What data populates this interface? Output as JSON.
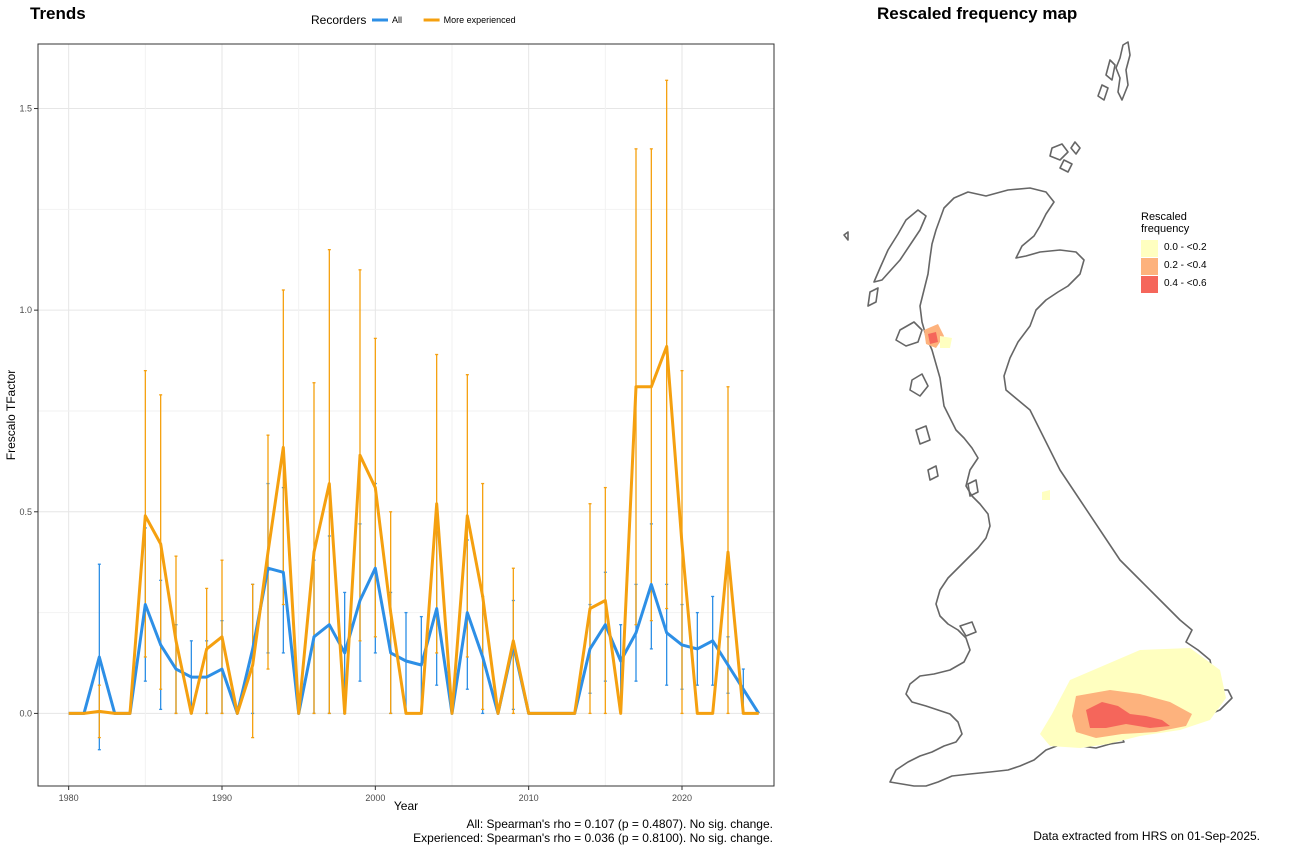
{
  "trends": {
    "title": "Trends",
    "legend_title": "Recorders",
    "notes": [
      "All: Spearman's rho = 0.107 (p = 0.4807). No sig. change.",
      "Experienced: Spearman's rho = 0.036 (p = 0.8100). No sig. change."
    ]
  },
  "map": {
    "title": "Rescaled frequency map",
    "legend_title_line1": "Rescaled",
    "legend_title_line2": "frequency",
    "legend": [
      {
        "label": "0.0 - <0.2",
        "color": "#FFFFC0"
      },
      {
        "label": "0.2 - <0.4",
        "color": "#FDB27D"
      },
      {
        "label": "0.4 - <0.6",
        "color": "#F5665B"
      }
    ],
    "footer": "Data extracted from HRS on 01-Sep-2025."
  },
  "chart_data": {
    "type": "line",
    "xlabel": "Year",
    "ylabel": "Frescalo TFactor",
    "xlim": [
      1978,
      2026
    ],
    "ylim": [
      -0.18,
      1.66
    ],
    "xticks": [
      1980,
      1990,
      2000,
      2010,
      2020
    ],
    "yticks": [
      0.0,
      0.5,
      1.0,
      1.5
    ],
    "ytick_labels": [
      "0.0",
      "0.5",
      "1.0",
      "1.5"
    ],
    "grid": true,
    "legend_position": "top",
    "series": [
      {
        "name": "All",
        "color": "#2D8FE6",
        "points": [
          {
            "x": 1980,
            "y": 0
          },
          {
            "x": 1981,
            "y": 0
          },
          {
            "x": 1982,
            "y": 0.14,
            "lo": -0.09,
            "hi": 0.37
          },
          {
            "x": 1983,
            "y": 0
          },
          {
            "x": 1984,
            "y": 0
          },
          {
            "x": 1985,
            "y": 0.27,
            "lo": 0.08,
            "hi": 0.46
          },
          {
            "x": 1986,
            "y": 0.17,
            "lo": 0.01,
            "hi": 0.33
          },
          {
            "x": 1987,
            "y": 0.11,
            "lo": 0,
            "hi": 0.22
          },
          {
            "x": 1988,
            "y": 0.09,
            "lo": 0,
            "hi": 0.18
          },
          {
            "x": 1989,
            "y": 0.09,
            "lo": 0,
            "hi": 0.18
          },
          {
            "x": 1990,
            "y": 0.11,
            "lo": 0,
            "hi": 0.23
          },
          {
            "x": 1991,
            "y": 0
          },
          {
            "x": 1992,
            "y": 0.16,
            "lo": 0,
            "hi": 0.32
          },
          {
            "x": 1993,
            "y": 0.36,
            "lo": 0.15,
            "hi": 0.57
          },
          {
            "x": 1994,
            "y": 0.35,
            "lo": 0.15,
            "hi": 0.56
          },
          {
            "x": 1995,
            "y": 0
          },
          {
            "x": 1996,
            "y": 0.19,
            "lo": 0,
            "hi": 0.38
          },
          {
            "x": 1997,
            "y": 0.22,
            "lo": 0,
            "hi": 0.44
          },
          {
            "x": 1998,
            "y": 0.15,
            "lo": 0,
            "hi": 0.3
          },
          {
            "x": 1999,
            "y": 0.28,
            "lo": 0.08,
            "hi": 0.47
          },
          {
            "x": 2000,
            "y": 0.36,
            "lo": 0.15,
            "hi": 0.57
          },
          {
            "x": 2001,
            "y": 0.15,
            "lo": 0,
            "hi": 0.3
          },
          {
            "x": 2002,
            "y": 0.13,
            "lo": 0,
            "hi": 0.25
          },
          {
            "x": 2003,
            "y": 0.12,
            "lo": 0,
            "hi": 0.24
          },
          {
            "x": 2004,
            "y": 0.26,
            "lo": 0.07,
            "hi": 0.45
          },
          {
            "x": 2005,
            "y": 0
          },
          {
            "x": 2006,
            "y": 0.25,
            "lo": 0.06,
            "hi": 0.43
          },
          {
            "x": 2007,
            "y": 0.14,
            "lo": 0,
            "hi": 0.29
          },
          {
            "x": 2008,
            "y": 0
          },
          {
            "x": 2009,
            "y": 0.17,
            "lo": 0.01,
            "hi": 0.28
          },
          {
            "x": 2010,
            "y": 0
          },
          {
            "x": 2011,
            "y": 0
          },
          {
            "x": 2012,
            "y": 0
          },
          {
            "x": 2013,
            "y": 0
          },
          {
            "x": 2014,
            "y": 0.16,
            "lo": 0.05,
            "hi": 0.27
          },
          {
            "x": 2015,
            "y": 0.22,
            "lo": 0.08,
            "hi": 0.35
          },
          {
            "x": 2016,
            "y": 0.13,
            "lo": 0.03,
            "hi": 0.22
          },
          {
            "x": 2017,
            "y": 0.2,
            "lo": 0.08,
            "hi": 0.32
          },
          {
            "x": 2018,
            "y": 0.32,
            "lo": 0.16,
            "hi": 0.47
          },
          {
            "x": 2019,
            "y": 0.2,
            "lo": 0.07,
            "hi": 0.32
          },
          {
            "x": 2020,
            "y": 0.17,
            "lo": 0.06,
            "hi": 0.27
          },
          {
            "x": 2021,
            "y": 0.16,
            "lo": 0.07,
            "hi": 0.25
          },
          {
            "x": 2022,
            "y": 0.18,
            "lo": 0.07,
            "hi": 0.29
          },
          {
            "x": 2023,
            "y": 0.12,
            "lo": 0.05,
            "hi": 0.19
          },
          {
            "x": 2024,
            "y": 0.06,
            "lo": 0,
            "hi": 0.11
          },
          {
            "x": 2025,
            "y": 0
          }
        ]
      },
      {
        "name": "More experienced",
        "color": "#F5A00F",
        "points": [
          {
            "x": 1980,
            "y": 0
          },
          {
            "x": 1981,
            "y": 0
          },
          {
            "x": 1982,
            "y": 0.005,
            "lo": -0.06,
            "hi": 0.07
          },
          {
            "x": 1983,
            "y": 0
          },
          {
            "x": 1984,
            "y": 0
          },
          {
            "x": 1985,
            "y": 0.49,
            "lo": 0.14,
            "hi": 0.85
          },
          {
            "x": 1986,
            "y": 0.42,
            "lo": 0.06,
            "hi": 0.79
          },
          {
            "x": 1987,
            "y": 0.18,
            "lo": 0,
            "hi": 0.39
          },
          {
            "x": 1988,
            "y": 0
          },
          {
            "x": 1989,
            "y": 0.16,
            "lo": 0,
            "hi": 0.31
          },
          {
            "x": 1990,
            "y": 0.19,
            "lo": 0,
            "hi": 0.38
          },
          {
            "x": 1991,
            "y": 0
          },
          {
            "x": 1992,
            "y": 0.12,
            "lo": -0.06,
            "hi": 0.32
          },
          {
            "x": 1993,
            "y": 0.4,
            "lo": 0.11,
            "hi": 0.69
          },
          {
            "x": 1994,
            "y": 0.66,
            "lo": 0.27,
            "hi": 1.05
          },
          {
            "x": 1995,
            "y": 0
          },
          {
            "x": 1996,
            "y": 0.4,
            "lo": 0,
            "hi": 0.82
          },
          {
            "x": 1997,
            "y": 0.57,
            "lo": 0,
            "hi": 1.15
          },
          {
            "x": 1998,
            "y": 0
          },
          {
            "x": 1999,
            "y": 0.64,
            "lo": 0.18,
            "hi": 1.1
          },
          {
            "x": 2000,
            "y": 0.56,
            "lo": 0.19,
            "hi": 0.93
          },
          {
            "x": 2001,
            "y": 0.25,
            "lo": 0,
            "hi": 0.5
          },
          {
            "x": 2002,
            "y": 0
          },
          {
            "x": 2003,
            "y": 0
          },
          {
            "x": 2004,
            "y": 0.52,
            "lo": 0.15,
            "hi": 0.89
          },
          {
            "x": 2005,
            "y": 0
          },
          {
            "x": 2006,
            "y": 0.49,
            "lo": 0.14,
            "hi": 0.84
          },
          {
            "x": 2007,
            "y": 0.29,
            "lo": 0.01,
            "hi": 0.57
          },
          {
            "x": 2008,
            "y": 0
          },
          {
            "x": 2009,
            "y": 0.18,
            "lo": 0,
            "hi": 0.36
          },
          {
            "x": 2010,
            "y": 0
          },
          {
            "x": 2011,
            "y": 0
          },
          {
            "x": 2012,
            "y": 0
          },
          {
            "x": 2013,
            "y": 0
          },
          {
            "x": 2014,
            "y": 0.26,
            "lo": 0,
            "hi": 0.52
          },
          {
            "x": 2015,
            "y": 0.28,
            "lo": 0,
            "hi": 0.56
          },
          {
            "x": 2016,
            "y": 0
          },
          {
            "x": 2017,
            "y": 0.81,
            "lo": 0.22,
            "hi": 1.4
          },
          {
            "x": 2018,
            "y": 0.81,
            "lo": 0.23,
            "hi": 1.4
          },
          {
            "x": 2019,
            "y": 0.91,
            "lo": 0.26,
            "hi": 1.57
          },
          {
            "x": 2020,
            "y": 0.42,
            "lo": 0,
            "hi": 0.85
          },
          {
            "x": 2021,
            "y": 0
          },
          {
            "x": 2022,
            "y": 0
          },
          {
            "x": 2023,
            "y": 0.4,
            "lo": 0,
            "hi": 0.81
          },
          {
            "x": 2024,
            "y": 0
          },
          {
            "x": 2025,
            "y": 0
          }
        ]
      }
    ]
  }
}
